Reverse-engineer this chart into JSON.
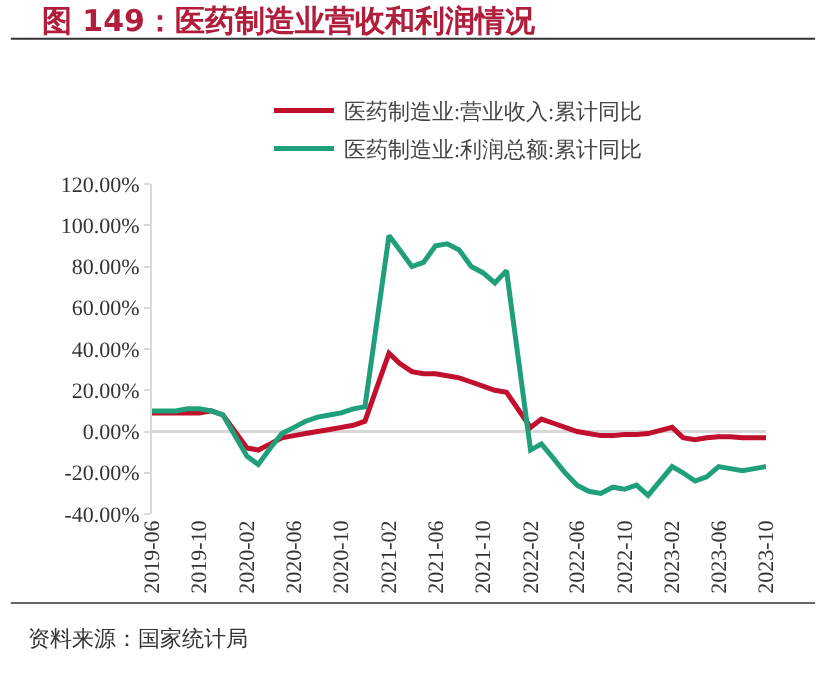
{
  "chart_data": {
    "type": "line",
    "title": "图 149：医药制造业营收和利润情况",
    "x": [
      "2019-06",
      "2019-07",
      "2019-08",
      "2019-09",
      "2019-10",
      "2019-11",
      "2019-12",
      "2020-02",
      "2020-03",
      "2020-04",
      "2020-05",
      "2020-06",
      "2020-07",
      "2020-08",
      "2020-09",
      "2020-10",
      "2020-11",
      "2020-12",
      "2021-02",
      "2021-03",
      "2021-04",
      "2021-05",
      "2021-06",
      "2021-07",
      "2021-08",
      "2021-09",
      "2021-10",
      "2021-11",
      "2021-12",
      "2022-02",
      "2022-03",
      "2022-04",
      "2022-05",
      "2022-06",
      "2022-07",
      "2022-08",
      "2022-09",
      "2022-10",
      "2022-11",
      "2022-12",
      "2023-02",
      "2023-03",
      "2023-04",
      "2023-05",
      "2023-06",
      "2023-07",
      "2023-08",
      "2023-09",
      "2023-10"
    ],
    "series": [
      {
        "name": "医药制造业:营业收入:累计同比",
        "color": "#c0102e",
        "values": [
          9,
          9,
          9,
          9,
          9,
          10,
          8,
          -8,
          -9,
          -6,
          -3,
          -2,
          -1,
          0,
          1,
          2,
          3,
          5,
          38,
          33,
          29,
          28,
          28,
          27,
          26,
          24,
          22,
          20,
          19,
          2,
          6,
          4,
          2,
          0,
          -1,
          -2,
          -2,
          -1.5,
          -1.5,
          -1,
          2,
          -3,
          -4,
          -3,
          -2.5,
          -2.5,
          -3,
          -3,
          -3
        ]
      },
      {
        "name": "医药制造业:利润总额:累计同比",
        "color": "#1fa07a",
        "values": [
          10,
          10,
          10,
          11,
          11,
          10,
          8,
          -12,
          -16,
          -8,
          -1,
          2,
          5,
          7,
          8,
          9,
          11,
          12,
          95,
          88,
          80,
          82,
          90,
          91,
          88,
          80,
          77,
          72,
          78,
          -9,
          -6,
          -13,
          -20,
          -26,
          -29,
          -30,
          -27,
          -28,
          -26,
          -31,
          -17,
          -20,
          -24,
          -22,
          -17,
          -18,
          -19,
          -18,
          -17
        ]
      }
    ],
    "xlim": [
      "2019-06",
      "2023-10"
    ],
    "xticks": [
      "2019-06",
      "2019-10",
      "2020-02",
      "2020-06",
      "2020-10",
      "2021-02",
      "2021-06",
      "2021-10",
      "2022-02",
      "2022-06",
      "2022-10",
      "2023-02",
      "2023-06",
      "2023-10"
    ],
    "ylim": [
      -40,
      120
    ],
    "yticks": [
      {
        "value": -40,
        "label": "-40.00%"
      },
      {
        "value": -20,
        "label": "-20.00%"
      },
      {
        "value": 0,
        "label": "0.00%"
      },
      {
        "value": 20,
        "label": "20.00%"
      },
      {
        "value": 40,
        "label": "40.00%"
      },
      {
        "value": 60,
        "label": "60.00%"
      },
      {
        "value": 80,
        "label": "80.00%"
      },
      {
        "value": 100,
        "label": "100.00%"
      },
      {
        "value": 120,
        "label": "120.00%"
      }
    ],
    "ref_lines": [
      {
        "axis": "y",
        "value": 0,
        "color": "#d9d9d9"
      }
    ],
    "grid": false,
    "legend": "top",
    "marker": "none",
    "line_style": "solid",
    "annotations": [
      "资料来源：国家统计局"
    ]
  }
}
